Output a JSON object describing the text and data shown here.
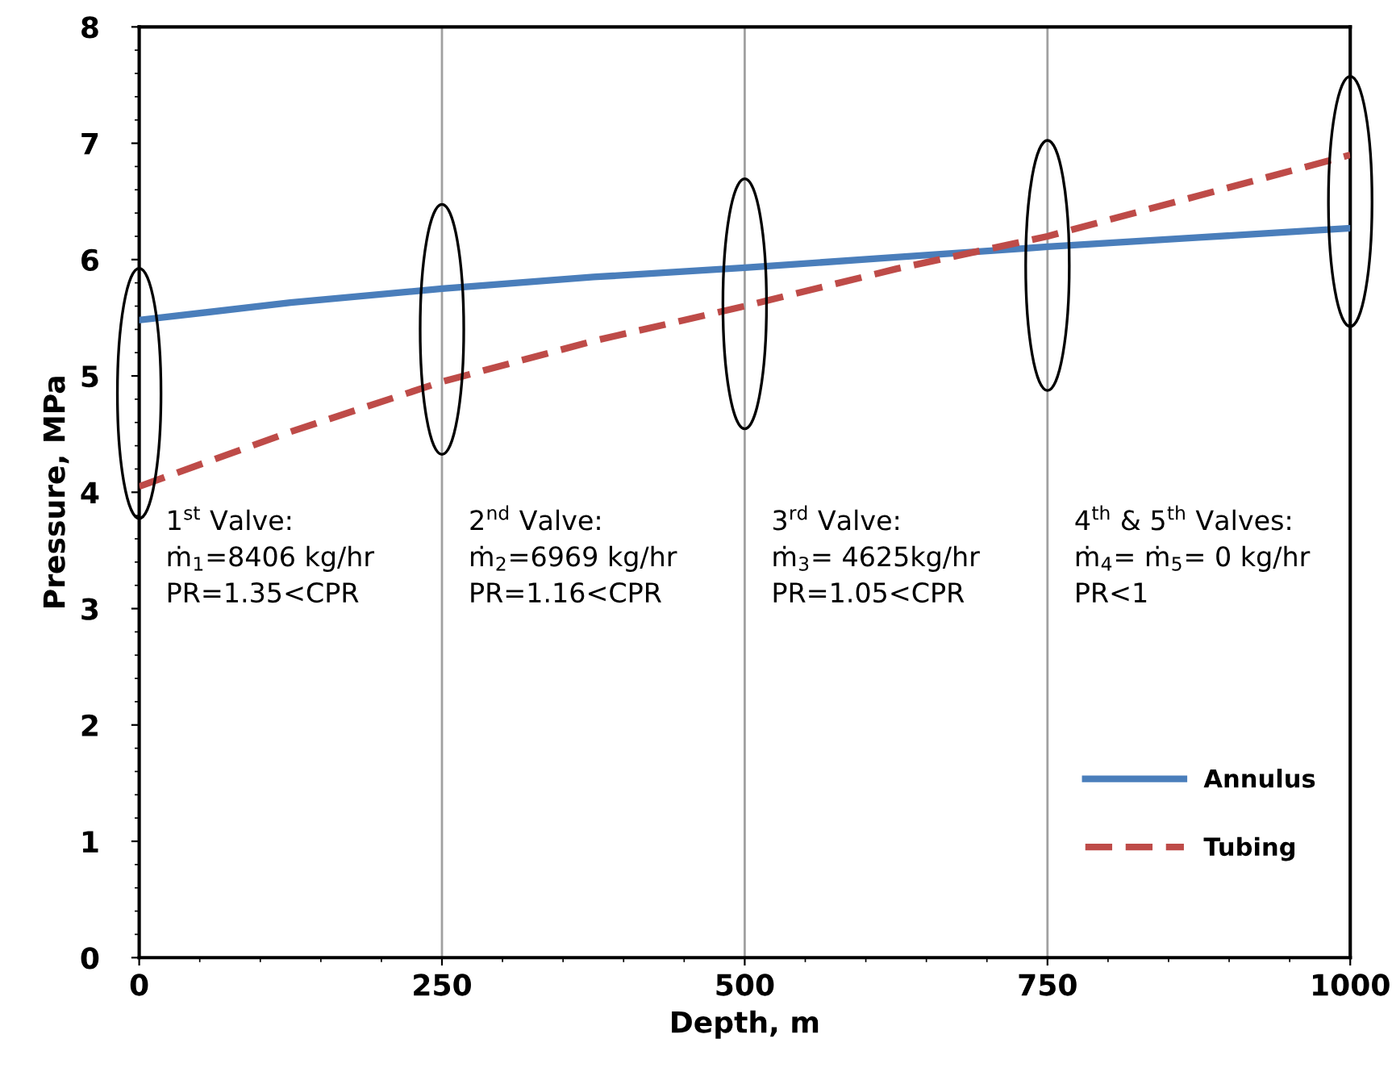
{
  "chart_data": {
    "type": "line",
    "xlabel": "Depth, m",
    "ylabel": "Pressure, MPa",
    "x": [
      0,
      125,
      250,
      375,
      500,
      625,
      750,
      875,
      1000
    ],
    "series": [
      {
        "name": "Annulus",
        "color": "#4a7ebb",
        "line_style": "solid",
        "values": [
          5.48,
          5.63,
          5.75,
          5.85,
          5.93,
          6.02,
          6.11,
          6.19,
          6.27
        ]
      },
      {
        "name": "Tubing",
        "color": "#be4b48",
        "line_style": "dashed",
        "values": [
          4.05,
          4.52,
          4.95,
          5.3,
          5.6,
          5.92,
          6.2,
          6.55,
          6.9
        ]
      }
    ],
    "xlim": [
      0,
      1000
    ],
    "xticks": [
      0,
      250,
      500,
      750,
      1000
    ],
    "ylim": [
      0,
      8
    ],
    "yticks": [
      0,
      1,
      2,
      3,
      4,
      5,
      6,
      7,
      8
    ],
    "grid": "x",
    "legend": "bottom right",
    "marker": "none",
    "annotations": [
      "1$^{st}$ Valve:",
      "ṁ$_{1}$=8406 kg/hr",
      "PR=1.35<CPR",
      "2$^{nd}$ Valve:",
      "ṁ$_{2}$=6969 kg/hr",
      "PR=1.16<CPR",
      "3$^{rd}$ Valve:",
      "ṁ$_{3}$= 4625kg/hr",
      "PR=1.05<CPR",
      "4$^{th}$ & 5$^{th}$ Valves:",
      "ṁ$_{4}$= ṁ$_{5}$= 0 kg/hr",
      "PR<1"
    ]
  }
}
